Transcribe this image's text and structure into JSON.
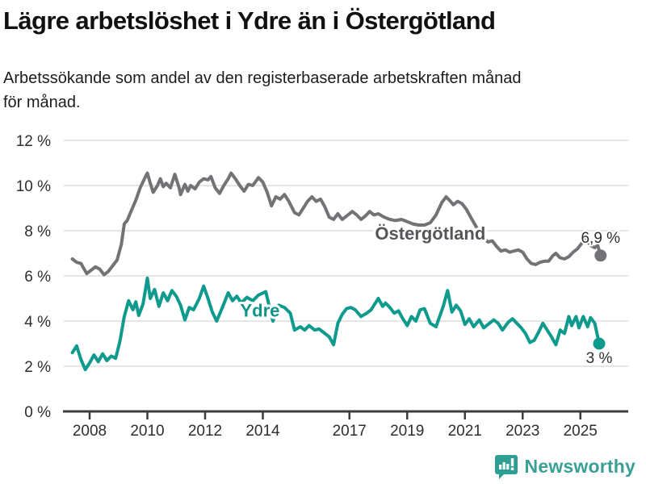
{
  "header": {
    "title": "Lägre arbetslöshet i Ydre än i Östergötland",
    "subtitle_line1": "Arbetssökande som andel av den registerbaserade arbetskraften månad",
    "subtitle_line2": "för månad."
  },
  "footer": {
    "brand": "Newsworthy"
  },
  "colors": {
    "grid": "#d8d8d8",
    "axis": "#3c3c3c",
    "tick_text": "#2e2e2e",
    "end_label_text": "#2e2e2e",
    "series_ostergotland": "#727376",
    "series_ostergotland_label": "#55565a",
    "series_ydre": "#0f9a8e",
    "series_ydre_label": "#0f948a",
    "brand_teal": "#2f9e92",
    "brand_text": "#3aa096"
  },
  "chart_data": {
    "type": "line",
    "title": "Lägre arbetslöshet i Ydre än i Östergötland",
    "xlabel": "",
    "ylabel": "",
    "x_unit": "decimal year (monthly data)",
    "y_unit": "% av registerbaserad arbetskraft",
    "xlim": [
      2007.1,
      2026.6
    ],
    "ylim": [
      0,
      12
    ],
    "grid": true,
    "legend_position": "inline-labels",
    "y_ticks": [
      {
        "value": 0,
        "label": "0 %"
      },
      {
        "value": 2,
        "label": "2 %"
      },
      {
        "value": 4,
        "label": "4 %"
      },
      {
        "value": 6,
        "label": "6 %"
      },
      {
        "value": 8,
        "label": "8 %"
      },
      {
        "value": 10,
        "label": "10 %"
      },
      {
        "value": 12,
        "label": "12 %"
      }
    ],
    "x_ticks": [
      {
        "value": 2008,
        "label": "2008"
      },
      {
        "value": 2010,
        "label": "2010"
      },
      {
        "value": 2012,
        "label": "2012"
      },
      {
        "value": 2014,
        "label": "2014"
      },
      {
        "value": 2017,
        "label": "2017"
      },
      {
        "value": 2019,
        "label": "2019"
      },
      {
        "value": 2021,
        "label": "2021"
      },
      {
        "value": 2023,
        "label": "2023"
      },
      {
        "value": 2025,
        "label": "2025"
      }
    ],
    "series": [
      {
        "name": "Östergötland",
        "color_key": "series_ostergotland",
        "label_color_key": "series_ostergotland_label",
        "end_label": "6,9 %",
        "end_label_side": "above",
        "label_at": {
          "x": 2019.8,
          "y": 7.6
        },
        "points": [
          [
            2007.4,
            6.75
          ],
          [
            2007.55,
            6.6
          ],
          [
            2007.7,
            6.55
          ],
          [
            2007.9,
            6.1
          ],
          [
            2008.05,
            6.25
          ],
          [
            2008.2,
            6.4
          ],
          [
            2008.35,
            6.3
          ],
          [
            2008.5,
            6.05
          ],
          [
            2008.65,
            6.2
          ],
          [
            2008.8,
            6.45
          ],
          [
            2008.95,
            6.7
          ],
          [
            2009.1,
            7.4
          ],
          [
            2009.2,
            8.3
          ],
          [
            2009.3,
            8.45
          ],
          [
            2009.45,
            8.9
          ],
          [
            2009.6,
            9.35
          ],
          [
            2009.75,
            9.9
          ],
          [
            2009.9,
            10.3
          ],
          [
            2010.0,
            10.55
          ],
          [
            2010.1,
            10.1
          ],
          [
            2010.2,
            9.7
          ],
          [
            2010.35,
            10.0
          ],
          [
            2010.45,
            10.3
          ],
          [
            2010.55,
            9.95
          ],
          [
            2010.65,
            10.1
          ],
          [
            2010.8,
            9.9
          ],
          [
            2010.95,
            10.5
          ],
          [
            2011.1,
            9.9
          ],
          [
            2011.15,
            9.6
          ],
          [
            2011.3,
            10.05
          ],
          [
            2011.4,
            9.75
          ],
          [
            2011.5,
            10.0
          ],
          [
            2011.65,
            9.85
          ],
          [
            2011.8,
            10.15
          ],
          [
            2011.95,
            10.3
          ],
          [
            2012.1,
            10.25
          ],
          [
            2012.2,
            10.4
          ],
          [
            2012.35,
            9.9
          ],
          [
            2012.5,
            9.65
          ],
          [
            2012.65,
            10.0
          ],
          [
            2012.8,
            10.3
          ],
          [
            2012.9,
            10.55
          ],
          [
            2013.05,
            10.3
          ],
          [
            2013.2,
            10.0
          ],
          [
            2013.35,
            9.75
          ],
          [
            2013.5,
            10.05
          ],
          [
            2013.65,
            10.0
          ],
          [
            2013.85,
            10.35
          ],
          [
            2014.0,
            10.15
          ],
          [
            2014.15,
            9.7
          ],
          [
            2014.3,
            9.1
          ],
          [
            2014.45,
            9.5
          ],
          [
            2014.6,
            9.4
          ],
          [
            2014.75,
            9.6
          ],
          [
            2014.9,
            9.3
          ],
          [
            2015.1,
            8.8
          ],
          [
            2015.25,
            8.7
          ],
          [
            2015.4,
            9.0
          ],
          [
            2015.55,
            9.3
          ],
          [
            2015.7,
            9.5
          ],
          [
            2015.85,
            9.3
          ],
          [
            2016.0,
            9.4
          ],
          [
            2016.15,
            9.05
          ],
          [
            2016.3,
            8.6
          ],
          [
            2016.45,
            8.5
          ],
          [
            2016.6,
            8.75
          ],
          [
            2016.75,
            8.5
          ],
          [
            2016.9,
            8.65
          ],
          [
            2017.1,
            8.85
          ],
          [
            2017.25,
            8.7
          ],
          [
            2017.4,
            8.5
          ],
          [
            2017.55,
            8.65
          ],
          [
            2017.7,
            8.85
          ],
          [
            2017.85,
            8.7
          ],
          [
            2018.0,
            8.75
          ],
          [
            2018.2,
            8.6
          ],
          [
            2018.4,
            8.5
          ],
          [
            2018.6,
            8.45
          ],
          [
            2018.8,
            8.5
          ],
          [
            2019.0,
            8.4
          ],
          [
            2019.2,
            8.3
          ],
          [
            2019.4,
            8.25
          ],
          [
            2019.6,
            8.25
          ],
          [
            2019.8,
            8.35
          ],
          [
            2020.0,
            8.7
          ],
          [
            2020.2,
            9.25
          ],
          [
            2020.35,
            9.5
          ],
          [
            2020.5,
            9.3
          ],
          [
            2020.6,
            9.15
          ],
          [
            2020.75,
            9.3
          ],
          [
            2020.9,
            9.2
          ],
          [
            2021.05,
            8.95
          ],
          [
            2021.2,
            8.6
          ],
          [
            2021.4,
            8.15
          ],
          [
            2021.6,
            7.75
          ],
          [
            2021.8,
            7.5
          ],
          [
            2021.95,
            7.55
          ],
          [
            2022.1,
            7.3
          ],
          [
            2022.25,
            7.1
          ],
          [
            2022.4,
            7.15
          ],
          [
            2022.55,
            7.05
          ],
          [
            2022.7,
            7.1
          ],
          [
            2022.85,
            7.15
          ],
          [
            2023.0,
            7.05
          ],
          [
            2023.15,
            6.75
          ],
          [
            2023.3,
            6.55
          ],
          [
            2023.45,
            6.5
          ],
          [
            2023.6,
            6.6
          ],
          [
            2023.75,
            6.65
          ],
          [
            2023.9,
            6.65
          ],
          [
            2024.05,
            6.9
          ],
          [
            2024.15,
            7.0
          ],
          [
            2024.3,
            6.8
          ],
          [
            2024.45,
            6.75
          ],
          [
            2024.6,
            6.85
          ],
          [
            2024.75,
            7.05
          ],
          [
            2024.9,
            7.2
          ],
          [
            2025.05,
            7.45
          ],
          [
            2025.2,
            7.6
          ],
          [
            2025.35,
            7.35
          ],
          [
            2025.5,
            7.25
          ],
          [
            2025.6,
            7.35
          ],
          [
            2025.7,
            6.9
          ]
        ]
      },
      {
        "name": "Ydre",
        "color_key": "series_ydre",
        "label_color_key": "series_ydre_label",
        "end_label": "3 %",
        "end_label_side": "below",
        "label_at": {
          "x": 2013.9,
          "y": 4.2
        },
        "points": [
          [
            2007.4,
            2.6
          ],
          [
            2007.55,
            2.9
          ],
          [
            2007.7,
            2.3
          ],
          [
            2007.85,
            1.85
          ],
          [
            2008.0,
            2.15
          ],
          [
            2008.15,
            2.5
          ],
          [
            2008.3,
            2.2
          ],
          [
            2008.45,
            2.55
          ],
          [
            2008.6,
            2.25
          ],
          [
            2008.75,
            2.45
          ],
          [
            2008.9,
            2.35
          ],
          [
            2009.05,
            3.1
          ],
          [
            2009.2,
            4.2
          ],
          [
            2009.35,
            4.9
          ],
          [
            2009.5,
            4.5
          ],
          [
            2009.6,
            4.85
          ],
          [
            2009.7,
            4.25
          ],
          [
            2009.85,
            4.75
          ],
          [
            2010.0,
            5.9
          ],
          [
            2010.1,
            5.0
          ],
          [
            2010.25,
            5.4
          ],
          [
            2010.4,
            4.65
          ],
          [
            2010.55,
            5.25
          ],
          [
            2010.7,
            4.9
          ],
          [
            2010.85,
            5.35
          ],
          [
            2011.0,
            5.1
          ],
          [
            2011.15,
            4.7
          ],
          [
            2011.3,
            4.05
          ],
          [
            2011.45,
            4.6
          ],
          [
            2011.6,
            4.5
          ],
          [
            2011.8,
            5.0
          ],
          [
            2011.95,
            5.55
          ],
          [
            2012.1,
            5.0
          ],
          [
            2012.25,
            4.4
          ],
          [
            2012.4,
            4.0
          ],
          [
            2012.6,
            4.6
          ],
          [
            2012.8,
            5.25
          ],
          [
            2012.95,
            4.9
          ],
          [
            2013.1,
            5.1
          ],
          [
            2013.25,
            4.8
          ],
          [
            2013.45,
            5.05
          ],
          [
            2013.65,
            4.9
          ],
          [
            2013.85,
            5.15
          ],
          [
            2014.1,
            5.3
          ],
          [
            2014.35,
            4.0
          ],
          [
            2014.55,
            4.7
          ],
          [
            2014.75,
            4.6
          ],
          [
            2014.95,
            4.35
          ],
          [
            2015.1,
            3.6
          ],
          [
            2015.3,
            3.75
          ],
          [
            2015.45,
            3.6
          ],
          [
            2015.6,
            3.8
          ],
          [
            2015.8,
            3.6
          ],
          [
            2015.95,
            3.65
          ],
          [
            2016.1,
            3.5
          ],
          [
            2016.3,
            3.3
          ],
          [
            2016.45,
            2.95
          ],
          [
            2016.6,
            3.9
          ],
          [
            2016.75,
            4.3
          ],
          [
            2016.9,
            4.55
          ],
          [
            2017.05,
            4.6
          ],
          [
            2017.2,
            4.5
          ],
          [
            2017.4,
            4.2
          ],
          [
            2017.6,
            4.35
          ],
          [
            2017.75,
            4.5
          ],
          [
            2018.0,
            5.0
          ],
          [
            2018.15,
            4.65
          ],
          [
            2018.25,
            4.8
          ],
          [
            2018.4,
            4.6
          ],
          [
            2018.55,
            4.35
          ],
          [
            2018.7,
            4.45
          ],
          [
            2018.85,
            4.1
          ],
          [
            2019.0,
            3.8
          ],
          [
            2019.15,
            4.2
          ],
          [
            2019.3,
            4.0
          ],
          [
            2019.45,
            4.5
          ],
          [
            2019.6,
            4.55
          ],
          [
            2019.8,
            3.9
          ],
          [
            2020.0,
            3.75
          ],
          [
            2020.25,
            4.65
          ],
          [
            2020.4,
            5.35
          ],
          [
            2020.55,
            4.4
          ],
          [
            2020.7,
            4.7
          ],
          [
            2020.85,
            4.45
          ],
          [
            2021.0,
            3.85
          ],
          [
            2021.15,
            4.1
          ],
          [
            2021.3,
            3.75
          ],
          [
            2021.5,
            4.05
          ],
          [
            2021.65,
            3.7
          ],
          [
            2021.8,
            3.85
          ],
          [
            2022.0,
            4.05
          ],
          [
            2022.15,
            3.9
          ],
          [
            2022.3,
            3.6
          ],
          [
            2022.5,
            3.95
          ],
          [
            2022.65,
            4.1
          ],
          [
            2022.8,
            3.9
          ],
          [
            2022.95,
            3.7
          ],
          [
            2023.1,
            3.45
          ],
          [
            2023.25,
            3.05
          ],
          [
            2023.4,
            3.15
          ],
          [
            2023.55,
            3.5
          ],
          [
            2023.7,
            3.9
          ],
          [
            2023.85,
            3.6
          ],
          [
            2024.0,
            3.3
          ],
          [
            2024.15,
            2.95
          ],
          [
            2024.3,
            3.6
          ],
          [
            2024.45,
            3.45
          ],
          [
            2024.6,
            4.2
          ],
          [
            2024.7,
            3.8
          ],
          [
            2024.85,
            4.2
          ],
          [
            2024.95,
            3.7
          ],
          [
            2025.1,
            4.2
          ],
          [
            2025.25,
            3.75
          ],
          [
            2025.35,
            4.15
          ],
          [
            2025.5,
            3.9
          ],
          [
            2025.65,
            3.0
          ]
        ]
      }
    ]
  }
}
